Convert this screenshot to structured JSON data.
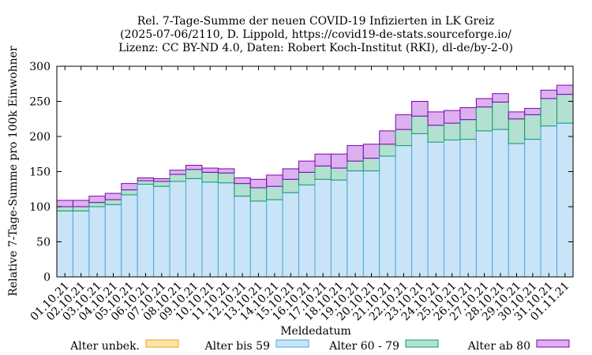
{
  "chart_data": {
    "type": "bar",
    "stacked": true,
    "title": [
      "Rel. 7-Tage-Summe der neuen COVID-19 Infizierten in LK Greiz",
      "(2025-07-06/2110, D. Lippold, https://covid19-de-stats.sourceforge.io/",
      "Lizenz: CC BY-ND 4.0, Daten: Robert Koch-Institut (RKI), dl-de/by-2-0)"
    ],
    "xlabel": "Meldedatum",
    "ylabel": "Relative 7-Tage-Summe pro 100k Einwohner",
    "ylim": [
      0,
      300
    ],
    "yticks": [
      0,
      50,
      100,
      150,
      200,
      250,
      300
    ],
    "grid": false,
    "legend_position": "bottom",
    "categories": [
      "01.10.21",
      "02.10.21",
      "03.10.21",
      "04.10.21",
      "05.10.21",
      "06.10.21",
      "07.10.21",
      "08.10.21",
      "09.10.21",
      "10.10.21",
      "11.10.21",
      "12.10.21",
      "13.10.21",
      "14.10.21",
      "15.10.21",
      "16.10.21",
      "17.10.21",
      "18.10.21",
      "19.10.21",
      "20.10.21",
      "21.10.21",
      "22.10.21",
      "23.10.21",
      "24.10.21",
      "25.10.21",
      "26.10.21",
      "27.10.21",
      "28.10.21",
      "29.10.21",
      "30.10.21",
      "31.10.21",
      "01.11.21"
    ],
    "series": [
      {
        "name": "Alter unbek.",
        "fill": "#fde4a9",
        "stroke": "#e8a317",
        "values": [
          0,
          0,
          0,
          0,
          0,
          0,
          0,
          0,
          0,
          0,
          0,
          0,
          0,
          0,
          0,
          0,
          0,
          0,
          0,
          0,
          0,
          0,
          0,
          0,
          0,
          0,
          0,
          0,
          0,
          0,
          0,
          0
        ]
      },
      {
        "name": "Alter bis 59",
        "fill": "#c9e4f7",
        "stroke": "#4aa8d8",
        "values": [
          94,
          94,
          100,
          103,
          117,
          132,
          129,
          136,
          140,
          135,
          134,
          115,
          108,
          110,
          120,
          131,
          139,
          138,
          151,
          151,
          172,
          187,
          204,
          192,
          195,
          196,
          208,
          210,
          190,
          196,
          215,
          219
        ]
      },
      {
        "name": "Alter 60 - 79",
        "fill": "#b3e0d1",
        "stroke": "#0e9c6a",
        "values": [
          6,
          6,
          6,
          7,
          7,
          5,
          7,
          10,
          13,
          14,
          14,
          18,
          19,
          19,
          19,
          18,
          19,
          17,
          14,
          18,
          17,
          23,
          25,
          24,
          24,
          28,
          34,
          39,
          35,
          35,
          39,
          41
        ]
      },
      {
        "name": "Alter ab 80",
        "fill": "#ddb0f0",
        "stroke": "#7d00b0",
        "values": [
          9,
          9,
          9,
          9,
          9,
          4,
          4,
          6,
          6,
          6,
          6,
          8,
          12,
          16,
          15,
          16,
          17,
          20,
          22,
          20,
          19,
          21,
          21,
          19,
          18,
          17,
          12,
          12,
          10,
          9,
          12,
          13
        ]
      }
    ]
  }
}
